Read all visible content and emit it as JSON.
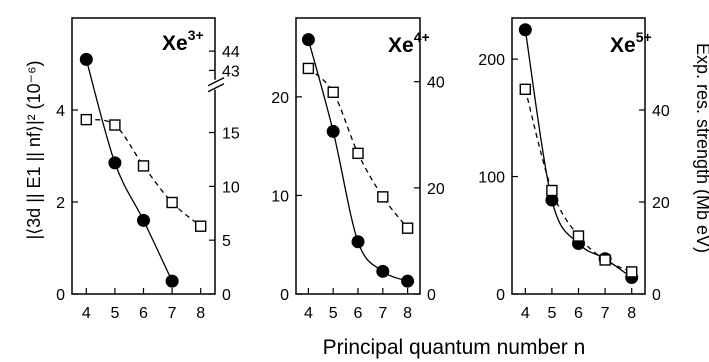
{
  "xlabel": "Principal quantum number n",
  "ylabel_left": "|⟨3d || E1 || nf⟩|² (10⁻⁶)",
  "ylabel_right": "Exp. res. strength (Mb eV)",
  "chart_data": [
    {
      "type": "line",
      "title": "Xe",
      "charge": "3+",
      "x_ticks": [
        "4",
        "5",
        "6",
        "7",
        "8"
      ],
      "xlim": [
        3.5,
        8.5
      ],
      "left_axis": {
        "ylim": [
          0,
          6
        ],
        "ticks": [
          "0",
          "2",
          "4"
        ],
        "tick_values": [
          0,
          2,
          4
        ]
      },
      "right_axis": {
        "ticks": [
          "0",
          "5",
          "10",
          "15",
          "43",
          "44"
        ],
        "tick_positions_left_units": [
          0,
          1.17,
          2.34,
          3.51,
          4.86,
          5.28
        ],
        "broken": true
      },
      "series": [
        {
          "axis": "left",
          "marker": "filled-circle",
          "line": "solid",
          "x": [
            4,
            5,
            6,
            7
          ],
          "y": [
            5.1,
            2.85,
            1.6,
            0.28
          ]
        },
        {
          "axis": "right",
          "marker": "open-square",
          "line": "dashed",
          "x": [
            4,
            5,
            6,
            7,
            8
          ],
          "y": [
            16.2,
            15.7,
            11.9,
            8.5,
            6.3
          ]
        }
      ]
    },
    {
      "type": "line",
      "title": "Xe",
      "charge": "4+",
      "x_ticks": [
        "4",
        "5",
        "6",
        "7",
        "8"
      ],
      "xlim": [
        3.5,
        8.5
      ],
      "left_axis": {
        "ylim": [
          0,
          28
        ],
        "ticks": [
          "0",
          "10",
          "20"
        ],
        "tick_values": [
          0,
          10,
          20
        ]
      },
      "right_axis": {
        "ylim": [
          0,
          52
        ],
        "ticks": [
          "0",
          "20",
          "40"
        ],
        "tick_values": [
          0,
          20,
          40
        ]
      },
      "series": [
        {
          "axis": "left",
          "marker": "filled-circle",
          "line": "solid",
          "x": [
            4,
            5,
            6,
            7,
            8
          ],
          "y": [
            25.8,
            16.5,
            5.3,
            2.3,
            1.3
          ]
        },
        {
          "axis": "right",
          "marker": "open-square",
          "line": "dashed",
          "x": [
            4,
            5,
            6,
            7,
            8
          ],
          "y": [
            42.5,
            38.0,
            26.5,
            18.3,
            12.4
          ]
        }
      ]
    },
    {
      "type": "line",
      "title": "Xe",
      "charge": "5+",
      "x_ticks": [
        "4",
        "5",
        "6",
        "7",
        "8"
      ],
      "xlim": [
        3.5,
        8.5
      ],
      "left_axis": {
        "ylim": [
          0,
          235
        ],
        "ticks": [
          "0",
          "100",
          "200"
        ],
        "tick_values": [
          0,
          100,
          200
        ]
      },
      "right_axis": {
        "ylim": [
          0,
          60
        ],
        "ticks": [
          "0",
          "20",
          "40"
        ],
        "tick_values": [
          0,
          20,
          40
        ]
      },
      "series": [
        {
          "axis": "left",
          "marker": "filled-circle",
          "line": "solid",
          "x": [
            4,
            5,
            6,
            7,
            8
          ],
          "y": [
            225,
            80,
            43,
            30,
            14
          ]
        },
        {
          "axis": "right",
          "marker": "open-square",
          "line": "dashed",
          "x": [
            4,
            5,
            6,
            7,
            8
          ],
          "y": [
            44.5,
            22.5,
            12.6,
            7.4,
            4.8
          ]
        }
      ]
    }
  ]
}
